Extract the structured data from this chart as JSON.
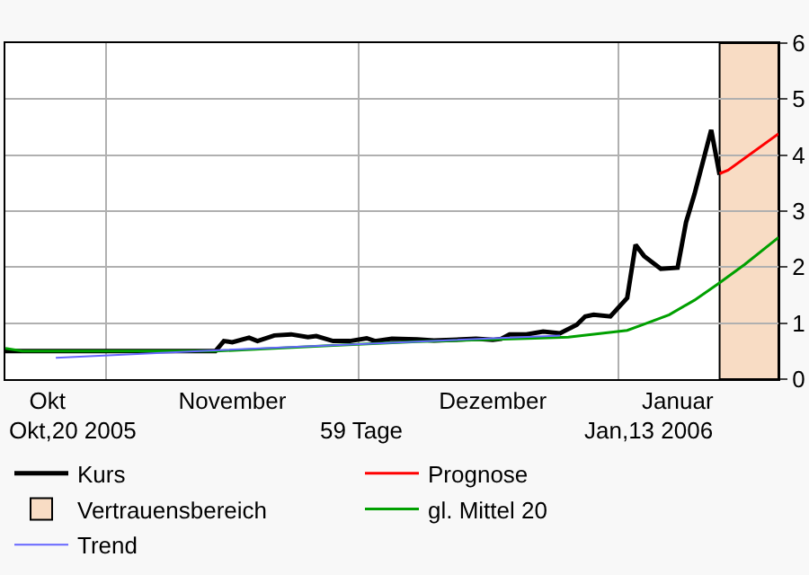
{
  "chart_data": {
    "type": "line",
    "xlim": [
      "2005-10-20",
      "2006-01-20"
    ],
    "xticks": [
      {
        "value": "2005-10-25",
        "label": "Okt"
      },
      {
        "value": "2005-11-01",
        "label": null
      },
      {
        "value": "2005-11-16",
        "label": "November"
      },
      {
        "value": "2005-12-01",
        "label": null
      },
      {
        "value": "2005-12-17",
        "label": "Dezember"
      },
      {
        "value": "2006-01-01",
        "label": null
      },
      {
        "value": "2006-01-08",
        "label": "Januar"
      }
    ],
    "ylim": [
      0,
      6
    ],
    "yticks": [
      0,
      1,
      2,
      3,
      4,
      5,
      6
    ],
    "grid": true,
    "legend": "bottom",
    "annotations": [
      "Okt,20 2005",
      "59 Tage",
      "Jan,13 2006"
    ],
    "bands": [
      {
        "axis": "x",
        "from": "2006-01-13",
        "to": "2006-01-20",
        "label": "Vertrauensbereich",
        "color": "#f8dcc4"
      }
    ],
    "series": [
      {
        "name": "Kurs",
        "color": "#000000",
        "x": [
          "2005-10-20",
          "2005-11-01",
          "2005-11-08",
          "2005-11-14",
          "2005-11-15",
          "2005-11-16",
          "2005-11-18",
          "2005-11-19",
          "2005-11-21",
          "2005-11-23",
          "2005-11-25",
          "2005-11-26",
          "2005-11-28",
          "2005-11-30",
          "2005-12-02",
          "2005-12-03",
          "2005-12-05",
          "2005-12-08",
          "2005-12-10",
          "2005-12-15",
          "2005-12-17",
          "2005-12-18",
          "2005-12-19",
          "2005-12-21",
          "2005-12-23",
          "2005-12-25",
          "2005-12-27",
          "2005-12-28",
          "2005-12-29",
          "2005-12-31",
          "2006-01-02",
          "2006-01-03",
          "2006-01-04",
          "2006-01-06",
          "2006-01-08",
          "2006-01-09",
          "2006-01-10",
          "2006-01-12",
          "2006-01-13"
        ],
        "values": [
          0.5,
          0.5,
          0.5,
          0.5,
          0.68,
          0.66,
          0.74,
          0.68,
          0.78,
          0.8,
          0.75,
          0.77,
          0.68,
          0.68,
          0.73,
          0.68,
          0.72,
          0.71,
          0.69,
          0.72,
          0.7,
          0.72,
          0.8,
          0.8,
          0.85,
          0.82,
          0.97,
          1.12,
          1.15,
          1.12,
          1.45,
          2.4,
          2.2,
          1.97,
          1.99,
          2.8,
          3.3,
          4.45,
          3.65
        ]
      },
      {
        "name": "Prognose",
        "color": "#ff0000",
        "x": [
          "2006-01-13",
          "2006-01-14",
          "2006-01-20"
        ],
        "values": [
          3.67,
          3.73,
          4.38
        ]
      },
      {
        "name": "gl. Mittel 20",
        "color": "#00a000",
        "x": [
          "2005-10-20",
          "2005-10-22",
          "2005-11-14",
          "2005-11-28",
          "2005-12-08",
          "2005-12-22",
          "2005-12-26",
          "2006-01-02",
          "2006-01-04",
          "2006-01-07",
          "2006-01-10",
          "2006-01-13",
          "2006-01-16",
          "2006-01-20"
        ],
        "values": [
          0.55,
          0.5,
          0.5,
          0.6,
          0.67,
          0.73,
          0.75,
          0.87,
          0.98,
          1.15,
          1.41,
          1.72,
          2.05,
          2.53
        ]
      },
      {
        "name": "Trend",
        "color": "#6666ff",
        "x": [
          "2005-10-26",
          "2005-11-15",
          "2005-12-05",
          "2005-12-25"
        ],
        "values": [
          0.38,
          0.52,
          0.65,
          0.78
        ]
      }
    ]
  }
}
